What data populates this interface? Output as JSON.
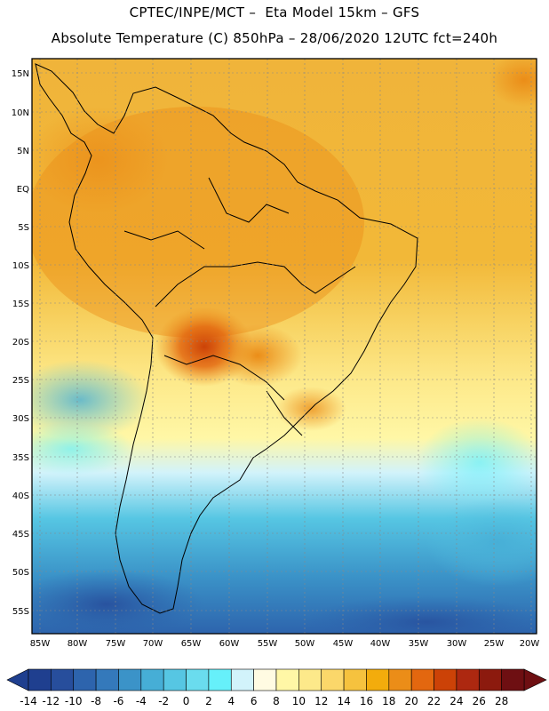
{
  "header": {
    "line1": "CPTEC/INPE/MCT –  Eta Model 15km – GFS",
    "line2": "Absolute Temperature (C) 850hPa – 28/06/2020 12UTC fct=240h"
  },
  "map": {
    "lat_ticks": [
      "15N",
      "10N",
      "5N",
      "EQ",
      "5S",
      "10S",
      "15S",
      "20S",
      "25S",
      "30S",
      "35S",
      "40S",
      "45S",
      "50S",
      "55S"
    ],
    "lon_ticks": [
      "85W",
      "80W",
      "75W",
      "70W",
      "65W",
      "60W",
      "55W",
      "50W",
      "45W",
      "40W",
      "35W",
      "30W",
      "25W",
      "20W"
    ]
  },
  "colorbar": {
    "labels": [
      "-14",
      "-12",
      "-10",
      "-8",
      "-6",
      "-4",
      "-2",
      "0",
      "2",
      "4",
      "6",
      "8",
      "10",
      "12",
      "14",
      "16",
      "18",
      "20",
      "22",
      "24",
      "26",
      "28"
    ],
    "colors": [
      "#1f3f8f",
      "#274e9c",
      "#2d64ad",
      "#3479bb",
      "#3b93c8",
      "#46aed6",
      "#56c6e3",
      "#6adcee",
      "#66f0fa",
      "#d2f3fb",
      "#fffbe2",
      "#fff7a6",
      "#fde98a",
      "#fbd76a",
      "#f6c23e",
      "#f3ac0c",
      "#eb8d18",
      "#e3670f",
      "#cc4207",
      "#ad2810",
      "#8c1a0e",
      "#6e0f12"
    ]
  }
}
